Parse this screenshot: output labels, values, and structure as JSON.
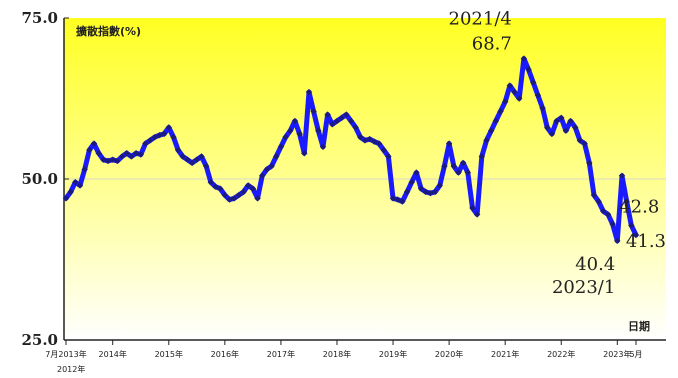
{
  "chart_data": {
    "type": "line",
    "ylabel": "擴散指數(%)",
    "xlabel": "日期",
    "ylim": [
      25,
      75
    ],
    "yticks": [
      "75.0",
      "50.0",
      "25.0"
    ],
    "ytick_values": [
      75,
      50,
      25
    ],
    "reference_line": 50,
    "x_tick_labels": [
      {
        "label": "7月2013年",
        "t": 0
      },
      {
        "label": "2014年",
        "t": 10
      },
      {
        "label": "2015年",
        "t": 22
      },
      {
        "label": "2016年",
        "t": 34
      },
      {
        "label": "2017年",
        "t": 46
      },
      {
        "label": "2018年",
        "t": 58
      },
      {
        "label": "2019年",
        "t": 70
      },
      {
        "label": "2020年",
        "t": 82
      },
      {
        "label": "2021年",
        "t": 94
      },
      {
        "label": "2022年",
        "t": 106
      },
      {
        "label": "2023年",
        "t": 118
      },
      {
        "label": "5月",
        "t": 122
      }
    ],
    "x_sublabel": "2012年",
    "series": [
      {
        "color": "#1a1aff",
        "marker_color": "#1a1a80",
        "values": [
          47.0,
          48.0,
          49.5,
          49.0,
          51.5,
          54.5,
          55.5,
          54.0,
          53.0,
          52.8,
          53.0,
          52.8,
          53.5,
          54.0,
          53.5,
          54.0,
          53.8,
          55.5,
          56.0,
          56.5,
          56.8,
          57.0,
          58.0,
          56.5,
          54.5,
          53.5,
          53.0,
          52.5,
          53.0,
          53.5,
          52.0,
          49.5,
          48.8,
          48.5,
          47.5,
          46.8,
          47.0,
          47.5,
          48.0,
          49.0,
          48.5,
          47.0,
          50.5,
          51.5,
          52.0,
          53.5,
          55.0,
          56.5,
          57.5,
          59.0,
          57.0,
          54.0,
          63.5,
          60.5,
          57.5,
          55.0,
          60.0,
          58.5,
          59.0,
          59.5,
          60.0,
          59.0,
          58.0,
          56.5,
          56.0,
          56.2,
          55.8,
          55.5,
          54.5,
          53.5,
          47.0,
          46.8,
          46.5,
          48.0,
          49.5,
          51.0,
          48.5,
          48.0,
          47.8,
          48.0,
          49.0,
          52.0,
          55.5,
          52.0,
          51.0,
          52.5,
          51.0,
          45.5,
          44.5,
          53.5,
          56.0,
          57.5,
          59.0,
          60.5,
          62.0,
          64.5,
          63.5,
          62.5,
          68.7,
          67.0,
          65.0,
          63.0,
          61.0,
          58.0,
          57.0,
          59.0,
          59.5,
          57.5,
          59.0,
          58.0,
          56.0,
          55.5,
          52.5,
          47.5,
          46.5,
          45.0,
          44.5,
          43.0,
          40.4,
          50.5,
          46.5,
          42.8,
          41.3
        ]
      }
    ],
    "annotations": [
      {
        "text": "2021/4",
        "t": 98,
        "v": 68.7
      },
      {
        "text": "68.7",
        "t": 98,
        "v": 68.7
      },
      {
        "text": "40.4",
        "t": 118,
        "v": 40.4
      },
      {
        "text": "2023/1",
        "t": 118,
        "v": 40.4
      },
      {
        "text": "42.8",
        "t": 121,
        "v": 42.8
      },
      {
        "text": "41.3",
        "t": 122,
        "v": 41.3
      }
    ]
  }
}
